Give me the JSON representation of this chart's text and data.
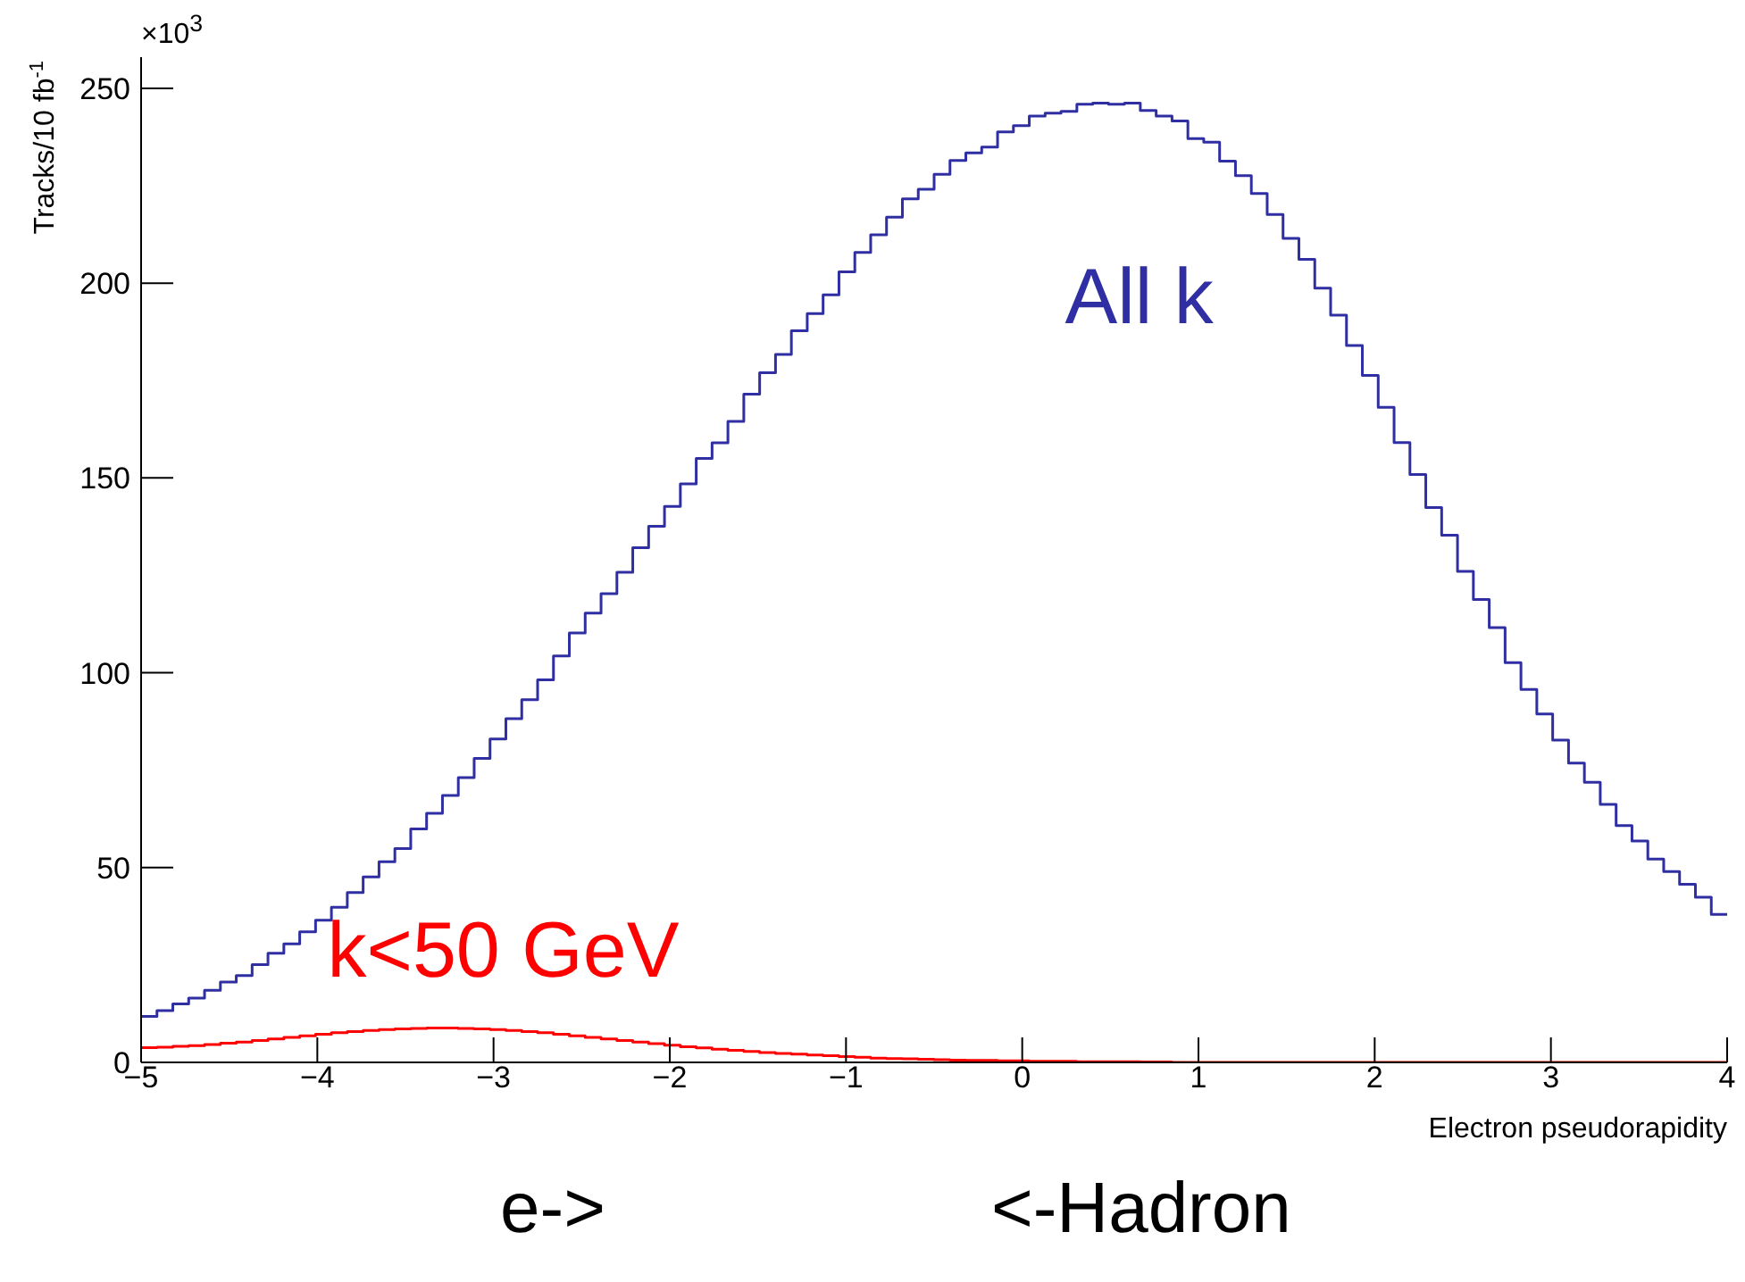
{
  "chart_data": {
    "type": "histogram",
    "xlabel": "Electron pseudorapidity",
    "ylabel": "Tracks/10 fb$^{-1}$",
    "annotations": [
      "×10$^{3}$",
      "e->",
      "<-Hadron"
    ],
    "bins": [
      -5,
      -4.91,
      -4.82,
      -4.73,
      -4.64,
      -4.55,
      -4.46,
      -4.37,
      -4.28,
      -4.19,
      -4.1,
      -4.01,
      -3.92,
      -3.83,
      -3.74,
      -3.65,
      -3.56,
      -3.47,
      -3.38,
      -3.29,
      -3.2,
      -3.11,
      -3.02,
      -2.93,
      -2.84,
      -2.75,
      -2.66,
      -2.57,
      -2.48,
      -2.39,
      -2.3,
      -2.21,
      -2.12,
      -2.03,
      -1.94,
      -1.85,
      -1.76,
      -1.67,
      -1.58,
      -1.49,
      -1.4,
      -1.31,
      -1.22,
      -1.13,
      -1.04,
      -0.95,
      -0.86,
      -0.77,
      -0.68,
      -0.59,
      -0.5,
      -0.41,
      -0.32,
      -0.23,
      -0.14,
      -0.05,
      0.04,
      0.13,
      0.22,
      0.31,
      0.4,
      0.49,
      0.58,
      0.67,
      0.76,
      0.85,
      0.94,
      1.03,
      1.12,
      1.21,
      1.3,
      1.39,
      1.48,
      1.57,
      1.66,
      1.75,
      1.84,
      1.93,
      2.02,
      2.11,
      2.2,
      2.29,
      2.38,
      2.47,
      2.56,
      2.65,
      2.74,
      2.83,
      2.92,
      3.01,
      3.1,
      3.19,
      3.28,
      3.37,
      3.46,
      3.55,
      3.64,
      3.73,
      3.82,
      3.91,
      4
    ],
    "series": [
      {
        "name": "All k",
        "color": "#2f2fa3",
        "values": [
          11.8,
          13.3,
          15.0,
          16.5,
          18.5,
          20.6,
          22.3,
          25.1,
          28.0,
          30.4,
          33.5,
          36.5,
          39.8,
          43.6,
          47.6,
          51.5,
          54.9,
          59.9,
          63.9,
          68.5,
          73.1,
          78.0,
          83.0,
          88.2,
          93.1,
          98.2,
          104.3,
          110.2,
          115.3,
          120.3,
          125.8,
          132.1,
          137.6,
          142.7,
          148.5,
          155.0,
          159.0,
          164.5,
          171.5,
          177.0,
          181.7,
          187.8,
          192.2,
          197.0,
          202.9,
          207.9,
          212.4,
          216.9,
          221.6,
          224.1,
          227.9,
          231.5,
          233.4,
          234.9,
          238.8,
          240.4,
          242.9,
          243.6,
          244.1,
          245.9,
          246.2,
          245.9,
          246.2,
          244.3,
          242.9,
          241.6,
          237.1,
          236.2,
          231.3,
          227.6,
          223.0,
          217.6,
          211.5,
          206.1,
          198.7,
          191.8,
          184.0,
          176.3,
          168.1,
          159.1,
          150.9,
          142.4,
          135.3,
          126.0,
          118.8,
          111.6,
          102.6,
          95.7,
          89.4,
          82.7,
          76.8,
          71.9,
          66.2,
          60.8,
          56.8,
          52.2,
          49.0,
          45.7,
          42.4,
          38.0
        ]
      },
      {
        "name": "k<50 GeV",
        "color": "#ff0000",
        "values": [
          3.8,
          3.9,
          4.1,
          4.3,
          4.6,
          4.9,
          5.2,
          5.6,
          6.0,
          6.4,
          6.8,
          7.2,
          7.6,
          7.9,
          8.2,
          8.4,
          8.6,
          8.7,
          8.8,
          8.8,
          8.7,
          8.6,
          8.4,
          8.2,
          7.9,
          7.6,
          7.2,
          6.8,
          6.4,
          6.0,
          5.6,
          5.2,
          4.8,
          4.4,
          4.0,
          3.7,
          3.4,
          3.1,
          2.8,
          2.5,
          2.3,
          2.1,
          1.9,
          1.7,
          1.5,
          1.3,
          1.1,
          1.0,
          0.9,
          0.8,
          0.7,
          0.6,
          0.5,
          0.5,
          0.4,
          0.4,
          0.3,
          0.3,
          0.3,
          0.2,
          0.2,
          0.2,
          0.2,
          0.1,
          0.1,
          0,
          0,
          0,
          0,
          0,
          0,
          0,
          0,
          0,
          0,
          0,
          0,
          0,
          0,
          0,
          0,
          0,
          0,
          0,
          0,
          0,
          0,
          0,
          0,
          0,
          0,
          0,
          0,
          0,
          0,
          0,
          0,
          0,
          0,
          0
        ]
      }
    ],
    "xlim": [
      -5,
      4
    ],
    "xticks": [
      -5,
      -4,
      -3,
      -2,
      -1,
      0,
      1,
      2,
      3,
      4
    ],
    "ylim": [
      0,
      258
    ],
    "yticks": [
      0,
      50,
      100,
      150,
      200,
      250
    ],
    "grid": false,
    "legend": false
  }
}
